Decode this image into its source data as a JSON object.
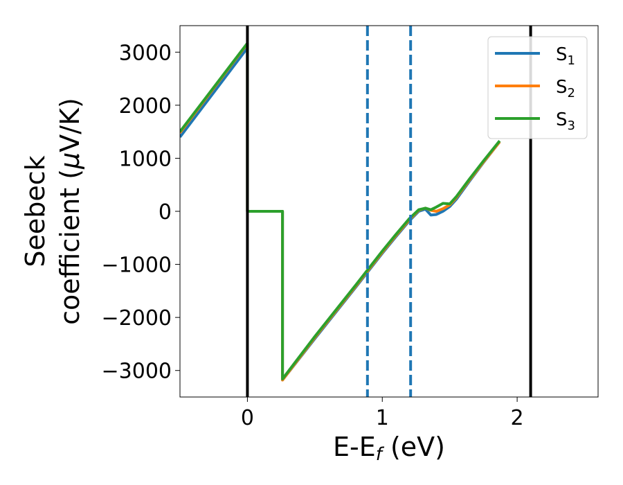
{
  "chart_data": {
    "type": "line",
    "xlabel": {
      "main": "E-E",
      "sub": "f",
      "tail": " (eV)"
    },
    "ylabel": {
      "line1": "Seebeck",
      "line2_pre": "coefficient  (",
      "line2_mu": "μ",
      "line2_post": "V/K)"
    },
    "xlim": [
      -0.5,
      2.6
    ],
    "ylim": [
      -3500,
      3500
    ],
    "xticks": [
      0,
      1,
      2
    ],
    "xtick_labels": [
      "0",
      "1",
      "2"
    ],
    "yticks": [
      3000,
      2000,
      1000,
      0,
      -1000,
      -2000,
      -3000
    ],
    "ytick_labels": [
      "3000",
      "2000",
      "1000",
      "0",
      "−1000",
      "−2000",
      "−3000"
    ],
    "grid": false,
    "legend_position": "top-right",
    "vlines_solid": [
      0.0,
      2.1
    ],
    "vlines_dashed": [
      0.89,
      1.21
    ],
    "series": [
      {
        "name": {
          "base": "S",
          "sub": "1"
        },
        "color": "#1f77b4",
        "x": [
          -0.5,
          0.0,
          0.0,
          0.26,
          0.26,
          0.5,
          0.8,
          1.0,
          1.1,
          1.2,
          1.27,
          1.32,
          1.36,
          1.4,
          1.45,
          1.5,
          1.55,
          1.65,
          1.75,
          1.87
        ],
        "y": [
          1400,
          3080,
          0,
          0,
          -3180,
          -2400,
          -1440,
          -790,
          -480,
          -180,
          0,
          40,
          -70,
          -60,
          0,
          90,
          230,
          580,
          920,
          1310
        ]
      },
      {
        "name": {
          "base": "S",
          "sub": "2"
        },
        "color": "#ff7f0e",
        "x": [
          -0.5,
          0.0,
          0.0,
          0.26,
          0.26,
          0.5,
          0.8,
          1.0,
          1.1,
          1.2,
          1.27,
          1.32,
          1.36,
          1.4,
          1.45,
          1.5,
          1.55,
          1.65,
          1.75,
          1.87
        ],
        "y": [
          1480,
          3160,
          0,
          0,
          -3180,
          -2380,
          -1420,
          -770,
          -460,
          -160,
          20,
          60,
          20,
          0,
          50,
          120,
          260,
          600,
          930,
          1310
        ]
      },
      {
        "name": {
          "base": "S",
          "sub": "3"
        },
        "color": "#2ca02c",
        "x": [
          -0.5,
          0.0,
          0.0,
          0.26,
          0.26,
          0.5,
          0.8,
          1.0,
          1.1,
          1.2,
          1.27,
          1.32,
          1.36,
          1.4,
          1.45,
          1.5,
          1.55,
          1.65,
          1.75,
          1.87
        ],
        "y": [
          1500,
          3170,
          0,
          0,
          -3160,
          -2360,
          -1400,
          -750,
          -440,
          -140,
          30,
          60,
          30,
          80,
          150,
          140,
          280,
          620,
          950,
          1330
        ]
      }
    ]
  }
}
